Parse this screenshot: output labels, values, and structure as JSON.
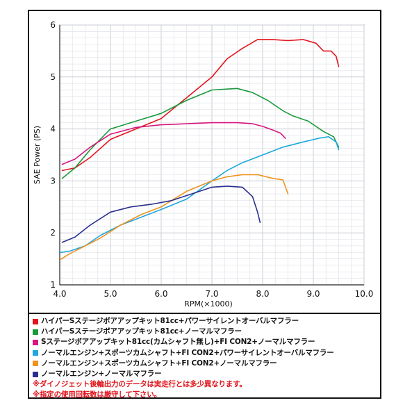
{
  "chart_data": {
    "type": "line",
    "title": "",
    "xlabel": "RPM(×1000)",
    "ylabel": "SAE Power (PS)",
    "xlim": [
      4.0,
      10.0
    ],
    "ylim": [
      1,
      6
    ],
    "xticks": [
      "4.0",
      "5.0",
      "6.0",
      "7.0",
      "8.0",
      "9.0",
      "10.0"
    ],
    "yticks": [
      "1",
      "2",
      "3",
      "4",
      "5",
      "6"
    ],
    "grid": true,
    "legend_position": "below",
    "series": [
      {
        "name": "ハイパーSステージボアアップキット81cc+パワーサイレントオーバルマフラー",
        "color": "#e3151c",
        "x": [
          4.05,
          4.3,
          4.6,
          5.0,
          5.5,
          6.0,
          6.5,
          7.0,
          7.3,
          7.6,
          7.9,
          8.2,
          8.5,
          8.8,
          9.05,
          9.2,
          9.35,
          9.45,
          9.5
        ],
        "y": [
          3.2,
          3.25,
          3.45,
          3.8,
          4.0,
          4.2,
          4.6,
          5.0,
          5.35,
          5.55,
          5.72,
          5.72,
          5.7,
          5.72,
          5.65,
          5.5,
          5.5,
          5.4,
          5.2
        ]
      },
      {
        "name": "ハイパーSステージボアアップキット81cc+ノーマルマフラー",
        "color": "#1a9a3b",
        "x": [
          4.05,
          4.3,
          4.6,
          5.0,
          5.5,
          6.0,
          6.5,
          7.0,
          7.5,
          7.8,
          8.1,
          8.4,
          8.6,
          8.9,
          9.2,
          9.4,
          9.5
        ],
        "y": [
          3.05,
          3.25,
          3.6,
          4.0,
          4.15,
          4.3,
          4.55,
          4.75,
          4.78,
          4.7,
          4.55,
          4.35,
          4.25,
          4.15,
          3.95,
          3.85,
          3.65
        ]
      },
      {
        "name": "Sステージボアアップキット81cc(カムシャフト無し)+FI CON2+ノーマルマフラー",
        "color": "#d8157e",
        "x": [
          4.05,
          4.3,
          4.6,
          5.0,
          5.5,
          6.0,
          6.5,
          7.0,
          7.5,
          7.8,
          8.0,
          8.2,
          8.35,
          8.45
        ],
        "y": [
          3.32,
          3.42,
          3.65,
          3.9,
          4.03,
          4.08,
          4.1,
          4.12,
          4.12,
          4.1,
          4.05,
          3.98,
          3.92,
          3.82
        ]
      },
      {
        "name": "ノーマルエンジン+スポーツカムシャフト+FI CON2+パワーサイレントオーバルマフラー",
        "color": "#1fa7e0",
        "x": [
          4.0,
          4.2,
          4.5,
          4.8,
          5.2,
          5.6,
          6.0,
          6.5,
          7.0,
          7.3,
          7.6,
          8.0,
          8.4,
          8.8,
          9.1,
          9.3,
          9.45,
          9.5
        ],
        "y": [
          1.62,
          1.65,
          1.75,
          1.95,
          2.15,
          2.3,
          2.45,
          2.65,
          3.0,
          3.2,
          3.35,
          3.5,
          3.65,
          3.75,
          3.82,
          3.85,
          3.75,
          3.6
        ]
      },
      {
        "name": "ノーマルエンジン+スポーツカムシャフト+FI CON2+ノーマルマフラー",
        "color": "#f0931e",
        "x": [
          4.0,
          4.2,
          4.5,
          4.8,
          5.2,
          5.6,
          6.0,
          6.5,
          7.0,
          7.3,
          7.6,
          7.9,
          8.2,
          8.4,
          8.5
        ],
        "y": [
          1.48,
          1.6,
          1.75,
          1.9,
          2.15,
          2.35,
          2.5,
          2.8,
          3.0,
          3.08,
          3.12,
          3.12,
          3.05,
          3.02,
          2.75
        ]
      },
      {
        "name": "ノーマルエンジン+ノーマルマフラー",
        "color": "#2a2f8f",
        "x": [
          4.05,
          4.3,
          4.6,
          5.0,
          5.4,
          5.8,
          6.2,
          6.6,
          7.0,
          7.3,
          7.6,
          7.8,
          7.9,
          7.95
        ],
        "y": [
          1.82,
          1.92,
          2.15,
          2.4,
          2.5,
          2.55,
          2.62,
          2.75,
          2.88,
          2.9,
          2.88,
          2.7,
          2.4,
          2.2
        ]
      }
    ],
    "notes": [
      "※ダイノジェット後輪出力のデータは実走行とは多少異なります。",
      "※指定の使用回転数は厳守して下さい。"
    ]
  }
}
